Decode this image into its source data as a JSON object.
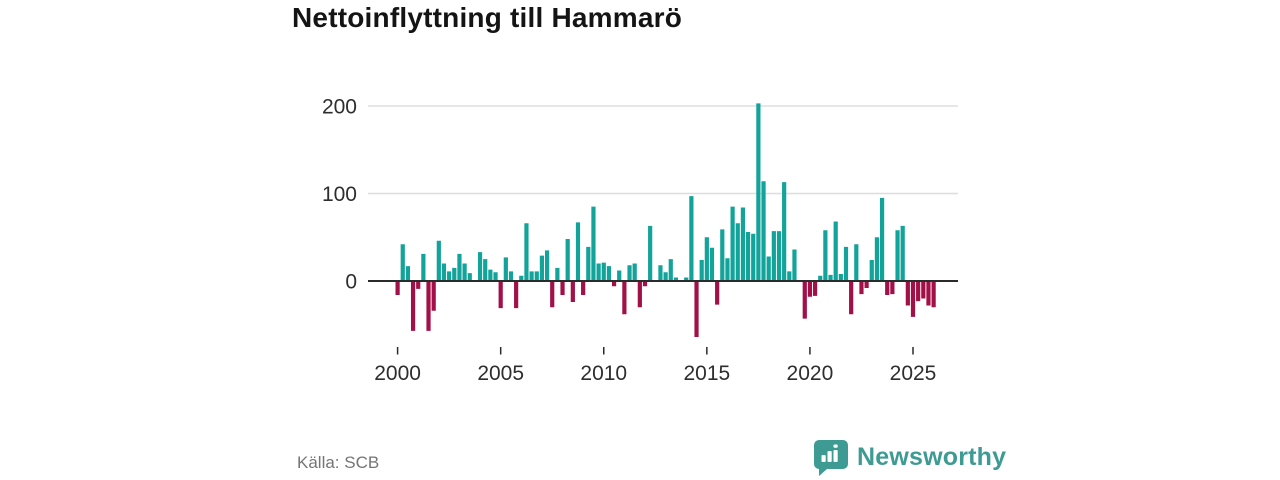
{
  "title": "Nettoinflyttning till Hammarö",
  "source": "Källa: SCB",
  "brand": {
    "name": "Newsworthy",
    "color": "#3e9b94"
  },
  "chart_data": {
    "type": "bar",
    "title": "Nettoinflyttning till Hammarö",
    "frequency": "quarterly",
    "start_period": "2000-Q1",
    "values": [
      -16,
      42,
      17,
      -57,
      -9,
      31,
      -57,
      -34,
      46,
      20,
      11,
      15,
      31,
      20,
      9,
      0,
      33,
      25,
      13,
      10,
      -31,
      27,
      11,
      -31,
      6,
      66,
      11,
      11,
      29,
      35,
      -30,
      15,
      -16,
      48,
      -24,
      67,
      -16,
      39,
      85,
      20,
      21,
      17,
      -6,
      12,
      -38,
      18,
      20,
      -30,
      -6,
      63,
      0,
      18,
      10,
      25,
      4,
      0,
      4,
      97,
      -64,
      24,
      50,
      38,
      -27,
      59,
      26,
      85,
      66,
      84,
      56,
      54,
      203,
      114,
      28,
      57,
      57,
      113,
      11,
      36,
      0,
      -43,
      -18,
      -17,
      6,
      58,
      7,
      68,
      8,
      39,
      -38,
      42,
      -15,
      -8,
      24,
      50,
      95,
      -16,
      -15,
      58,
      63,
      -28,
      -41,
      -23,
      -20,
      -28,
      -30
    ],
    "x_tick_labels": [
      "2000",
      "2005",
      "2010",
      "2015",
      "2020",
      "2025"
    ],
    "y_ticks": [
      0,
      100,
      200
    ],
    "ylim": [
      -70,
      215
    ],
    "grid": "horizontal",
    "legend": "none",
    "positive_color": "#12a39a",
    "negative_color": "#a31048",
    "axis_color": "#2b2b2b",
    "gridline_color": "#dddddd",
    "tick_label_color": "#2e2e2e",
    "source_label": "Källa: SCB"
  }
}
